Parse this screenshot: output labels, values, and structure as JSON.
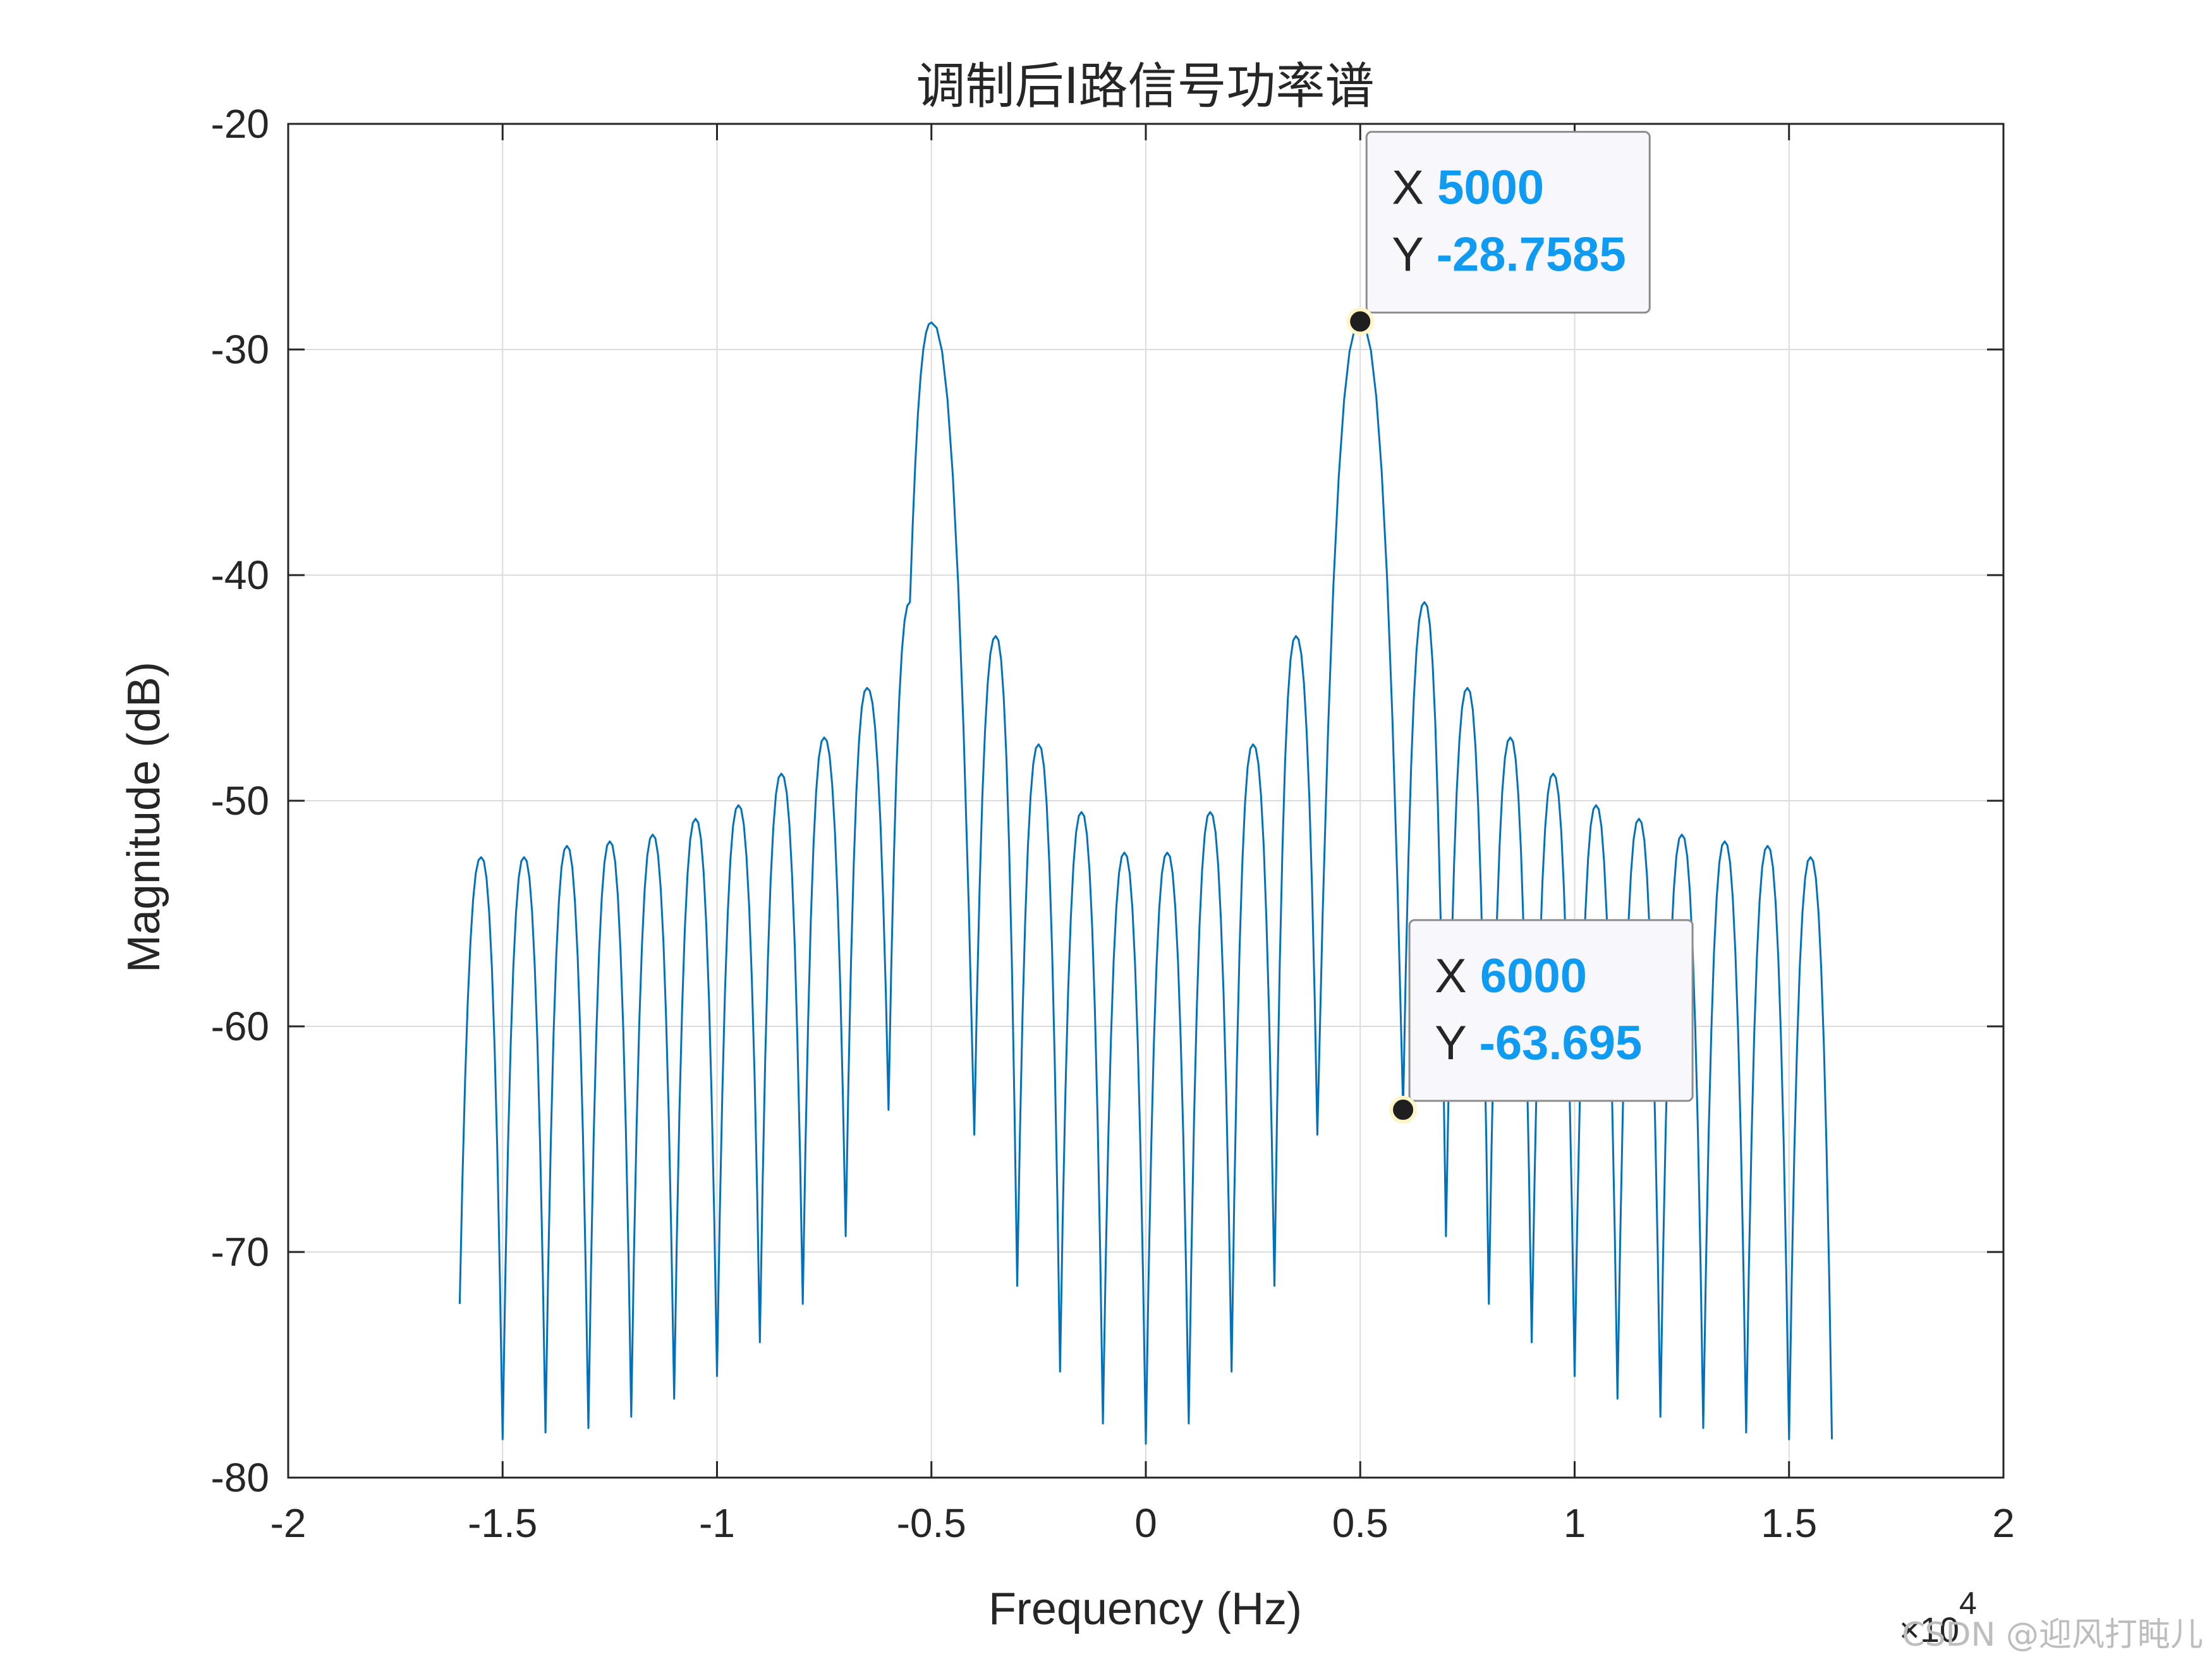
{
  "chart_data": {
    "type": "line",
    "title": "调制后I路信号功率谱",
    "xlabel": "Frequency (Hz)",
    "ylabel": "Magnitude (dB)",
    "xlim": [
      -20000,
      20000
    ],
    "ylim": [
      -80,
      -20
    ],
    "x_exponent_label": "×10",
    "x_exponent_power": "4",
    "x_ticks": [
      -20000,
      -15000,
      -10000,
      -5000,
      0,
      5000,
      10000,
      15000,
      20000
    ],
    "x_tick_labels": [
      "-2",
      "-1.5",
      "-1",
      "-0.5",
      "0",
      "0.5",
      "1",
      "1.5",
      "2"
    ],
    "y_ticks": [
      -20,
      -30,
      -40,
      -50,
      -60,
      -70,
      -80
    ],
    "y_tick_labels": [
      "-20",
      "-30",
      "-40",
      "-50",
      "-60",
      "-70",
      "-80"
    ],
    "grid": true,
    "line_color": "#0072bd",
    "series": [
      {
        "peaks": [
          {
            "x": -15500,
            "y": -52.5
          },
          {
            "x": -14500,
            "y": -52.5
          },
          {
            "x": -13500,
            "y": -52.0
          },
          {
            "x": -12500,
            "y": -51.8
          },
          {
            "x": -11500,
            "y": -51.5
          },
          {
            "x": -10500,
            "y": -50.8
          },
          {
            "x": -9500,
            "y": -50.2
          },
          {
            "x": -8500,
            "y": -48.8
          },
          {
            "x": -7500,
            "y": -47.2
          },
          {
            "x": -6500,
            "y": -45.0
          },
          {
            "x": -5500,
            "y": -41.2
          },
          {
            "x": -5000,
            "y": -28.8
          },
          {
            "x": -3500,
            "y": -42.7
          },
          {
            "x": -2500,
            "y": -47.5
          },
          {
            "x": -1500,
            "y": -50.5
          },
          {
            "x": -500,
            "y": -52.3
          },
          {
            "x": 500,
            "y": -52.3
          },
          {
            "x": 1500,
            "y": -50.5
          },
          {
            "x": 2500,
            "y": -47.5
          },
          {
            "x": 3500,
            "y": -42.7
          },
          {
            "x": 5000,
            "y": -28.8
          },
          {
            "x": 6500,
            "y": -41.2
          },
          {
            "x": 7500,
            "y": -45.0
          },
          {
            "x": 8500,
            "y": -47.2
          },
          {
            "x": 9500,
            "y": -48.8
          },
          {
            "x": 10500,
            "y": -50.2
          },
          {
            "x": 11500,
            "y": -50.8
          },
          {
            "x": 12500,
            "y": -51.5
          },
          {
            "x": 13500,
            "y": -51.8
          },
          {
            "x": 14500,
            "y": -52.0
          },
          {
            "x": 15500,
            "y": -52.5
          }
        ],
        "nulls": [
          {
            "x": -16000,
            "y": -72.3
          },
          {
            "x": -15000,
            "y": -78.3
          },
          {
            "x": -14000,
            "y": -78.0
          },
          {
            "x": -13000,
            "y": -77.8
          },
          {
            "x": -12000,
            "y": -77.3
          },
          {
            "x": -11000,
            "y": -76.5
          },
          {
            "x": -10000,
            "y": -75.5
          },
          {
            "x": -9000,
            "y": -74.0
          },
          {
            "x": -8000,
            "y": -72.3
          },
          {
            "x": -7000,
            "y": -69.3
          },
          {
            "x": -6000,
            "y": -63.7
          },
          {
            "x": -4000,
            "y": -64.8
          },
          {
            "x": -3000,
            "y": -71.5
          },
          {
            "x": -2000,
            "y": -75.3
          },
          {
            "x": -1000,
            "y": -77.6
          },
          {
            "x": 0,
            "y": -78.5
          },
          {
            "x": 1000,
            "y": -77.6
          },
          {
            "x": 2000,
            "y": -75.3
          },
          {
            "x": 3000,
            "y": -71.5
          },
          {
            "x": 4000,
            "y": -64.8
          },
          {
            "x": 6000,
            "y": -63.7
          },
          {
            "x": 7000,
            "y": -69.3
          },
          {
            "x": 8000,
            "y": -72.3
          },
          {
            "x": 9000,
            "y": -74.0
          },
          {
            "x": 10000,
            "y": -75.5
          },
          {
            "x": 11000,
            "y": -76.5
          },
          {
            "x": 12000,
            "y": -77.3
          },
          {
            "x": 13000,
            "y": -77.8
          },
          {
            "x": 14000,
            "y": -78.0
          },
          {
            "x": 15000,
            "y": -78.3
          },
          {
            "x": 16000,
            "y": -78.3
          }
        ]
      }
    ],
    "datatips": [
      {
        "x": 5000,
        "y": -28.7585,
        "x_key": "X",
        "y_key": "Y",
        "x_text": "5000",
        "y_text": "-28.7585"
      },
      {
        "x": 6000,
        "y": -63.695,
        "x_key": "X",
        "y_key": "Y",
        "x_text": "6000",
        "y_text": "-63.695"
      }
    ]
  },
  "watermark": "CSDN @迎风打盹儿"
}
